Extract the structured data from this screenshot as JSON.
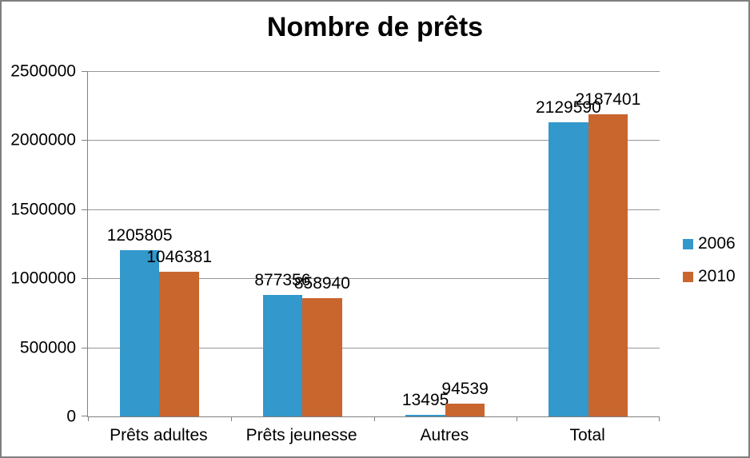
{
  "chart_data": {
    "type": "bar",
    "title": "Nombre de prêts",
    "categories": [
      "Prêts adultes",
      "Prêts jeunesse",
      "Autres",
      "Total"
    ],
    "series": [
      {
        "name": "2006",
        "color": "#3398cb",
        "values": [
          1205805,
          877356,
          13495,
          2129590
        ]
      },
      {
        "name": "2010",
        "color": "#c8662e",
        "values": [
          1046381,
          858940,
          94539,
          2187401
        ]
      }
    ],
    "ylim": [
      0,
      2500000
    ],
    "yticks": [
      0,
      500000,
      1000000,
      1500000,
      2000000,
      2500000
    ],
    "grid": true,
    "data_labels": true,
    "legend_position": "right"
  },
  "colors": {
    "series_2006": "#3398cb",
    "series_2010": "#c8662e",
    "gridline": "#969696",
    "axis_line": "#808080",
    "text": "#000000",
    "frame_border": "#7f7f7f"
  }
}
